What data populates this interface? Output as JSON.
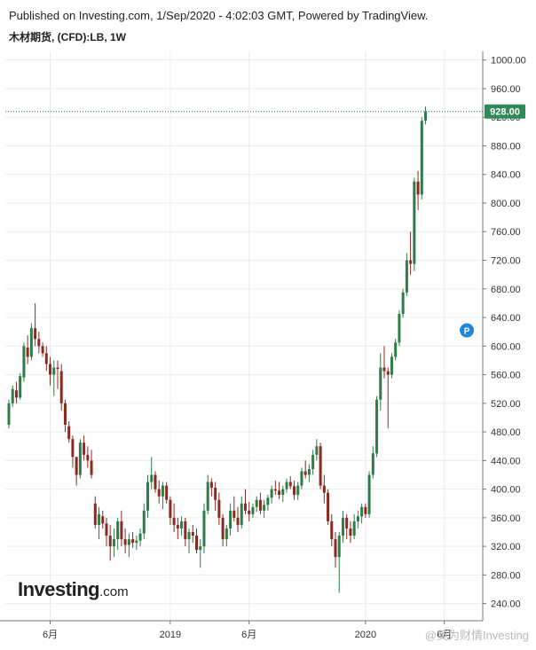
{
  "header": {
    "published": "Published on Investing.com, 1/Sep/2020 - 4:02:03 GMT, Powered by TradingView.",
    "symbol": "木材期货, (CFD):LB, 1W"
  },
  "logo": {
    "main": "Investing",
    "suffix": ".com"
  },
  "watermark": "@英为财情Investing",
  "colors": {
    "up": "#2e7d46",
    "down": "#8b2a22",
    "price_label_bg": "#2e8b57",
    "grid": "#ececec"
  },
  "chart_data": {
    "type": "candlestick",
    "title": "",
    "ylabel": "",
    "ylim": [
      216,
      1012
    ],
    "y_ticks": [
      1000,
      960,
      920,
      880,
      840,
      800,
      760,
      720,
      680,
      640,
      600,
      560,
      520,
      480,
      440,
      400,
      360,
      320,
      280,
      240
    ],
    "y_tick_labels": [
      "1000.00",
      "960.00",
      "920.00",
      "880.00",
      "840.00",
      "800.00",
      "760.00",
      "720.00",
      "680.00",
      "640.00",
      "600.00",
      "560.00",
      "520.00",
      "480.00",
      "440.00",
      "400.00",
      "360.00",
      "320.00",
      "280.00",
      "240.00"
    ],
    "x_ticks": [
      {
        "label": "6月",
        "index": 11
      },
      {
        "label": "2019",
        "index": 43
      },
      {
        "label": "6月",
        "index": 64
      },
      {
        "label": "2020",
        "index": 95
      },
      {
        "label": "6月",
        "index": 116
      }
    ],
    "last_price": "928.00",
    "last_price_value": 928,
    "marker": {
      "label": "P",
      "index": 122,
      "value": 622
    },
    "candles": [
      [
        490,
        525,
        485,
        520
      ],
      [
        520,
        545,
        515,
        540
      ],
      [
        538,
        550,
        520,
        528
      ],
      [
        528,
        562,
        525,
        558
      ],
      [
        556,
        605,
        550,
        600
      ],
      [
        598,
        615,
        575,
        585
      ],
      [
        585,
        632,
        580,
        625
      ],
      [
        625,
        660,
        600,
        610
      ],
      [
        610,
        620,
        590,
        600
      ],
      [
        600,
        605,
        585,
        590
      ],
      [
        590,
        600,
        565,
        575
      ],
      [
        575,
        585,
        545,
        560
      ],
      [
        560,
        580,
        530,
        570
      ],
      [
        570,
        580,
        540,
        568
      ],
      [
        565,
        575,
        510,
        520
      ],
      [
        520,
        525,
        480,
        490
      ],
      [
        488,
        495,
        465,
        470
      ],
      [
        470,
        475,
        430,
        445
      ],
      [
        445,
        445,
        405,
        420
      ],
      [
        420,
        470,
        415,
        465
      ],
      [
        465,
        475,
        440,
        448
      ],
      [
        448,
        460,
        430,
        440
      ],
      [
        440,
        455,
        415,
        420
      ],
      [
        380,
        390,
        345,
        350
      ],
      [
        350,
        375,
        330,
        365
      ],
      [
        362,
        370,
        345,
        352
      ],
      [
        352,
        360,
        320,
        335
      ],
      [
        335,
        350,
        300,
        320
      ],
      [
        320,
        345,
        305,
        330
      ],
      [
        330,
        360,
        315,
        355
      ],
      [
        355,
        370,
        320,
        330
      ],
      [
        330,
        345,
        310,
        322
      ],
      [
        322,
        338,
        305,
        330
      ],
      [
        330,
        340,
        318,
        325
      ],
      [
        325,
        335,
        315,
        328
      ],
      [
        328,
        345,
        320,
        338
      ],
      [
        338,
        380,
        330,
        370
      ],
      [
        370,
        420,
        360,
        410
      ],
      [
        410,
        445,
        400,
        420
      ],
      [
        420,
        425,
        395,
        400
      ],
      [
        400,
        412,
        380,
        390
      ],
      [
        390,
        410,
        372,
        405
      ],
      [
        405,
        410,
        380,
        385
      ],
      [
        385,
        390,
        350,
        360
      ],
      [
        360,
        380,
        340,
        350
      ],
      [
        350,
        360,
        330,
        345
      ],
      [
        345,
        362,
        335,
        355
      ],
      [
        355,
        360,
        320,
        330
      ],
      [
        330,
        345,
        310,
        340
      ],
      [
        340,
        350,
        325,
        335
      ],
      [
        335,
        345,
        310,
        315
      ],
      [
        315,
        330,
        290,
        320
      ],
      [
        320,
        380,
        310,
        370
      ],
      [
        370,
        420,
        365,
        410
      ],
      [
        410,
        415,
        390,
        402
      ],
      [
        402,
        410,
        370,
        385
      ],
      [
        385,
        395,
        350,
        360
      ],
      [
        360,
        365,
        320,
        330
      ],
      [
        330,
        350,
        320,
        345
      ],
      [
        345,
        380,
        335,
        370
      ],
      [
        370,
        390,
        355,
        360
      ],
      [
        360,
        375,
        340,
        350
      ],
      [
        350,
        390,
        345,
        380
      ],
      [
        380,
        400,
        365,
        370
      ],
      [
        370,
        382,
        355,
        365
      ],
      [
        365,
        380,
        360,
        375
      ],
      [
        375,
        390,
        368,
        385
      ],
      [
        385,
        395,
        365,
        370
      ],
      [
        370,
        385,
        360,
        378
      ],
      [
        378,
        392,
        370,
        388
      ],
      [
        388,
        405,
        380,
        400
      ],
      [
        400,
        412,
        392,
        398
      ],
      [
        398,
        410,
        386,
        392
      ],
      [
        392,
        405,
        382,
        400
      ],
      [
        400,
        415,
        395,
        410
      ],
      [
        410,
        418,
        400,
        404
      ],
      [
        404,
        412,
        385,
        392
      ],
      [
        392,
        410,
        385,
        405
      ],
      [
        405,
        430,
        400,
        425
      ],
      [
        425,
        440,
        415,
        420
      ],
      [
        420,
        435,
        410,
        428
      ],
      [
        428,
        455,
        420,
        448
      ],
      [
        448,
        470,
        440,
        460
      ],
      [
        460,
        465,
        400,
        405
      ],
      [
        405,
        420,
        380,
        395
      ],
      [
        395,
        400,
        350,
        355
      ],
      [
        355,
        365,
        320,
        330
      ],
      [
        330,
        340,
        290,
        305
      ],
      [
        305,
        340,
        255,
        335
      ],
      [
        335,
        370,
        325,
        360
      ],
      [
        360,
        365,
        330,
        345
      ],
      [
        345,
        355,
        325,
        335
      ],
      [
        335,
        365,
        330,
        355
      ],
      [
        355,
        370,
        345,
        362
      ],
      [
        362,
        380,
        352,
        375
      ],
      [
        375,
        380,
        360,
        365
      ],
      [
        365,
        425,
        360,
        420
      ],
      [
        420,
        460,
        415,
        450
      ],
      [
        450,
        530,
        445,
        525
      ],
      [
        525,
        590,
        510,
        570
      ],
      [
        570,
        600,
        555,
        565
      ],
      [
        565,
        570,
        485,
        560
      ],
      [
        560,
        590,
        555,
        585
      ],
      [
        585,
        610,
        580,
        605
      ],
      [
        605,
        650,
        600,
        645
      ],
      [
        645,
        680,
        640,
        675
      ],
      [
        675,
        730,
        670,
        720
      ],
      [
        720,
        760,
        700,
        715
      ],
      [
        715,
        835,
        705,
        830
      ],
      [
        830,
        845,
        790,
        812
      ],
      [
        812,
        920,
        805,
        915
      ],
      [
        915,
        935,
        910,
        928
      ]
    ]
  }
}
